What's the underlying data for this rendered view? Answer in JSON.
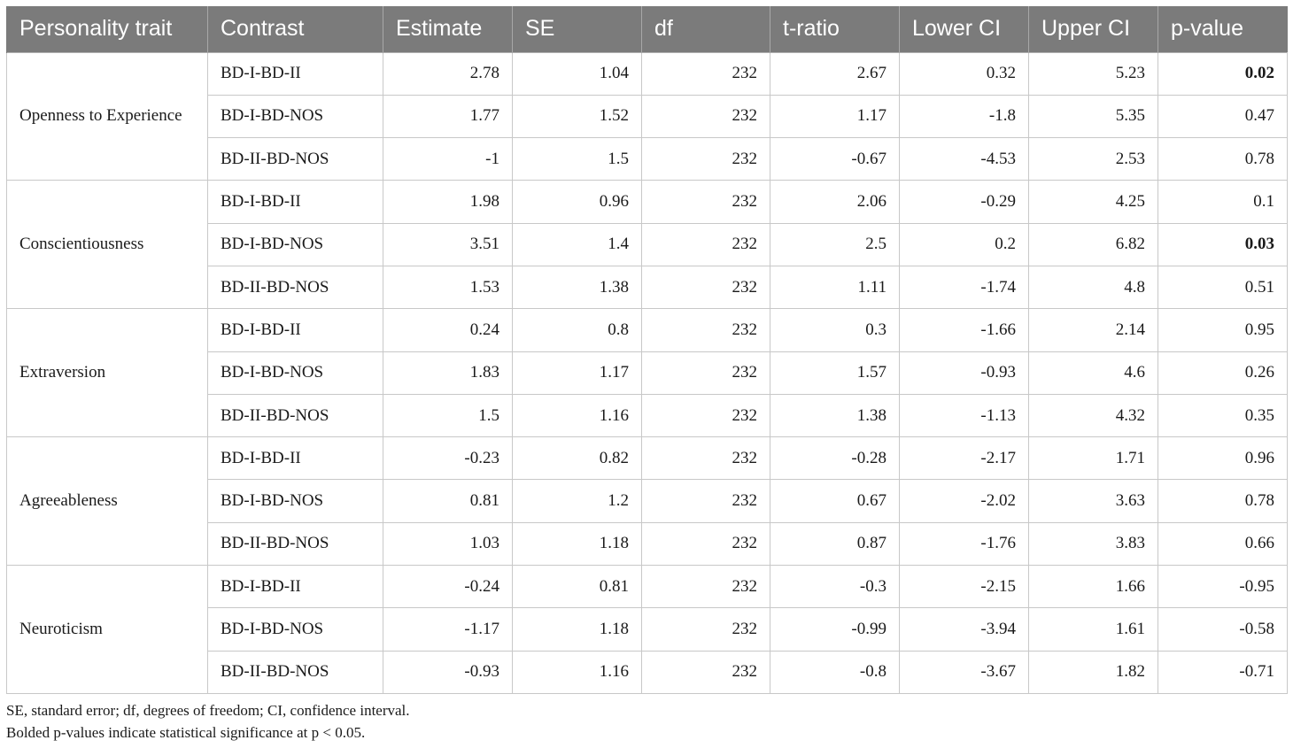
{
  "table": {
    "headers": [
      "Personality trait",
      "Contrast",
      "Estimate",
      "SE",
      "df",
      "t-ratio",
      "Lower CI",
      "Upper CI",
      "p-value"
    ],
    "groups": [
      {
        "trait": "Openness to Experience",
        "rows": [
          {
            "contrast": "BD-I-BD-II",
            "estimate": "2.78",
            "se": "1.04",
            "df": "232",
            "t_ratio": "2.67",
            "lower_ci": "0.32",
            "upper_ci": "5.23",
            "p_value": "0.02",
            "significant": true
          },
          {
            "contrast": "BD-I-BD-NOS",
            "estimate": "1.77",
            "se": "1.52",
            "df": "232",
            "t_ratio": "1.17",
            "lower_ci": "-1.8",
            "upper_ci": "5.35",
            "p_value": "0.47",
            "significant": false
          },
          {
            "contrast": "BD-II-BD-NOS",
            "estimate": "-1",
            "se": "1.5",
            "df": "232",
            "t_ratio": "-0.67",
            "lower_ci": "-4.53",
            "upper_ci": "2.53",
            "p_value": "0.78",
            "significant": false
          }
        ]
      },
      {
        "trait": "Conscientiousness",
        "rows": [
          {
            "contrast": "BD-I-BD-II",
            "estimate": "1.98",
            "se": "0.96",
            "df": "232",
            "t_ratio": "2.06",
            "lower_ci": "-0.29",
            "upper_ci": "4.25",
            "p_value": "0.1",
            "significant": false
          },
          {
            "contrast": "BD-I-BD-NOS",
            "estimate": "3.51",
            "se": "1.4",
            "df": "232",
            "t_ratio": "2.5",
            "lower_ci": "0.2",
            "upper_ci": "6.82",
            "p_value": "0.03",
            "significant": true
          },
          {
            "contrast": "BD-II-BD-NOS",
            "estimate": "1.53",
            "se": "1.38",
            "df": "232",
            "t_ratio": "1.11",
            "lower_ci": "-1.74",
            "upper_ci": "4.8",
            "p_value": "0.51",
            "significant": false
          }
        ]
      },
      {
        "trait": "Extraversion",
        "rows": [
          {
            "contrast": "BD-I-BD-II",
            "estimate": "0.24",
            "se": "0.8",
            "df": "232",
            "t_ratio": "0.3",
            "lower_ci": "-1.66",
            "upper_ci": "2.14",
            "p_value": "0.95",
            "significant": false
          },
          {
            "contrast": "BD-I-BD-NOS",
            "estimate": "1.83",
            "se": "1.17",
            "df": "232",
            "t_ratio": "1.57",
            "lower_ci": "-0.93",
            "upper_ci": "4.6",
            "p_value": "0.26",
            "significant": false
          },
          {
            "contrast": "BD-II-BD-NOS",
            "estimate": "1.5",
            "se": "1.16",
            "df": "232",
            "t_ratio": "1.38",
            "lower_ci": "-1.13",
            "upper_ci": "4.32",
            "p_value": "0.35",
            "significant": false
          }
        ]
      },
      {
        "trait": "Agreeableness",
        "rows": [
          {
            "contrast": "BD-I-BD-II",
            "estimate": "-0.23",
            "se": "0.82",
            "df": "232",
            "t_ratio": "-0.28",
            "lower_ci": "-2.17",
            "upper_ci": "1.71",
            "p_value": "0.96",
            "significant": false
          },
          {
            "contrast": "BD-I-BD-NOS",
            "estimate": "0.81",
            "se": "1.2",
            "df": "232",
            "t_ratio": "0.67",
            "lower_ci": "-2.02",
            "upper_ci": "3.63",
            "p_value": "0.78",
            "significant": false
          },
          {
            "contrast": "BD-II-BD-NOS",
            "estimate": "1.03",
            "se": "1.18",
            "df": "232",
            "t_ratio": "0.87",
            "lower_ci": "-1.76",
            "upper_ci": "3.83",
            "p_value": "0.66",
            "significant": false
          }
        ]
      },
      {
        "trait": "Neuroticism",
        "rows": [
          {
            "contrast": "BD-I-BD-II",
            "estimate": "-0.24",
            "se": "0.81",
            "df": "232",
            "t_ratio": "-0.3",
            "lower_ci": "-2.15",
            "upper_ci": "1.66",
            "p_value": "-0.95",
            "significant": false
          },
          {
            "contrast": "BD-I-BD-NOS",
            "estimate": "-1.17",
            "se": "1.18",
            "df": "232",
            "t_ratio": "-0.99",
            "lower_ci": "-3.94",
            "upper_ci": "1.61",
            "p_value": "-0.58",
            "significant": false
          },
          {
            "contrast": "BD-II-BD-NOS",
            "estimate": "-0.93",
            "se": "1.16",
            "df": "232",
            "t_ratio": "-0.8",
            "lower_ci": "-3.67",
            "upper_ci": "1.82",
            "p_value": "-0.71",
            "significant": false
          }
        ]
      }
    ]
  },
  "notes": {
    "abbreviations": "SE, standard error; df, degrees of freedom; CI, confidence interval.",
    "significance": "Bolded p-values indicate statistical significance at p < 0.05."
  },
  "colors": {
    "header_bg": "#7b7b7b",
    "header_text": "#ffffff",
    "border": "#c8c8c8"
  }
}
